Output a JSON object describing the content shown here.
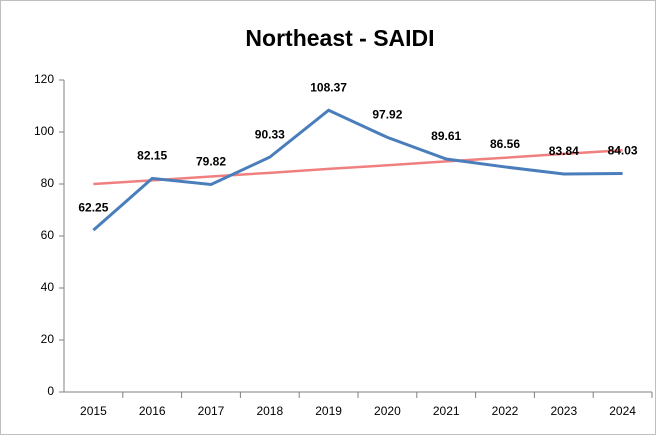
{
  "chart_data": {
    "type": "line",
    "title": "Northeast - SAIDI",
    "categories": [
      "2015",
      "2016",
      "2017",
      "2018",
      "2019",
      "2020",
      "2021",
      "2022",
      "2023",
      "2024"
    ],
    "series": [
      {
        "color": "#4a7ebb",
        "values": [
          62.25,
          82.15,
          79.82,
          90.33,
          108.37,
          97.92,
          89.61,
          86.56,
          83.84,
          84.03
        ],
        "data_labels": true
      },
      {
        "color": "#f08080",
        "values": [
          80.0,
          81.4,
          82.9,
          84.3,
          85.8,
          87.2,
          88.7,
          90.1,
          91.6,
          93.0
        ],
        "data_labels": false
      }
    ],
    "ylim": [
      0,
      120
    ],
    "yticks": [
      0,
      20,
      40,
      60,
      80,
      100,
      120
    ],
    "grid": false
  }
}
